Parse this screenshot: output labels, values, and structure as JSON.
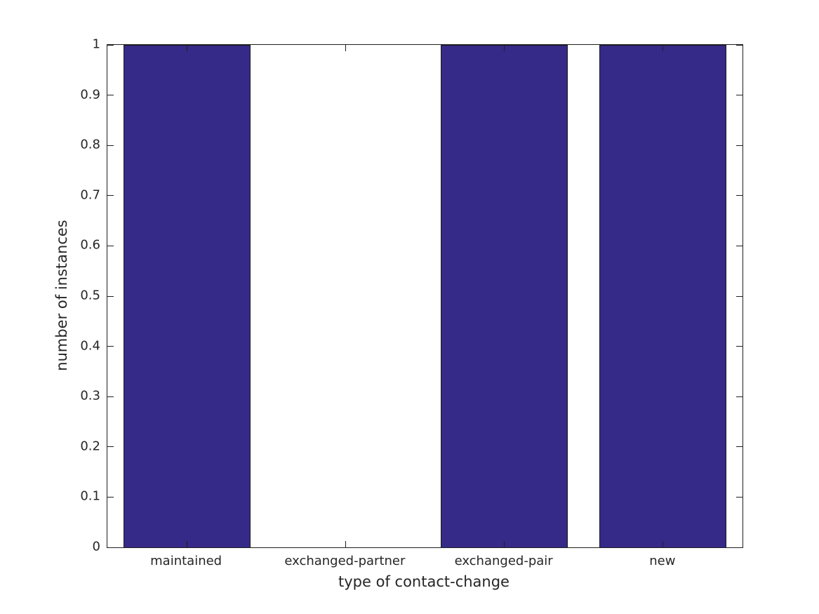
{
  "chart_data": {
    "type": "bar",
    "title": "",
    "xlabel": "type of contact-change",
    "ylabel": "number of instances",
    "categories": [
      "maintained",
      "exchanged-partner",
      "exchanged-pair",
      "new"
    ],
    "values": [
      1,
      0,
      1,
      1
    ],
    "ylim": [
      0,
      1
    ],
    "ytick_labels": [
      "0",
      "0.1",
      "0.2",
      "0.3",
      "0.4",
      "0.5",
      "0.6",
      "0.7",
      "0.8",
      "0.9",
      "1"
    ],
    "bar_width_fraction": 0.8,
    "grid": "off",
    "legend": "none",
    "box": "on",
    "tick_direction": "in",
    "bar_color": "#352A87",
    "bar_edge_color": "#1a1a1a",
    "axis_color": "#1f1f1f",
    "text_color": "#262626",
    "background_color": "#ffffff"
  }
}
